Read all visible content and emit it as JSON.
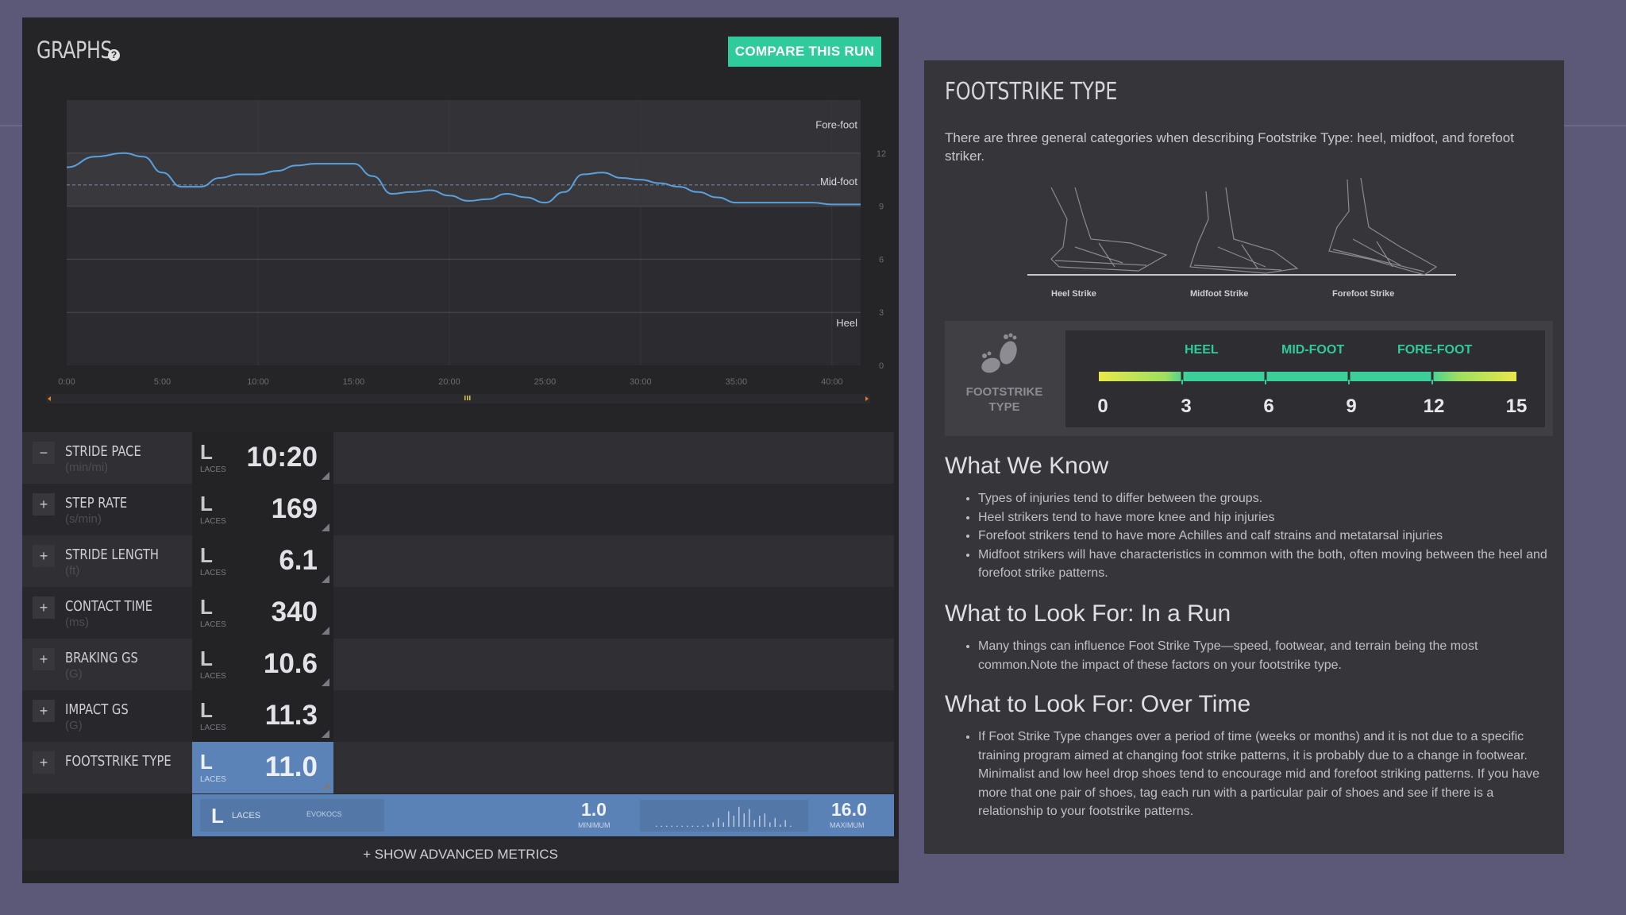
{
  "left": {
    "title": "GRAPHS",
    "help": "?",
    "compare_button": "COMPARE THIS RUN",
    "chart_labels": {
      "fore": "Fore-foot",
      "mid": "Mid-foot",
      "heel": "Heel"
    },
    "show_advanced": "+ SHOW ADVANCED METRICS",
    "metrics": [
      {
        "toggle": "−",
        "name": "STRIDE PACE",
        "unit": "(min/mi)",
        "letter": "L",
        "shoe": "LACES",
        "value": "10:20"
      },
      {
        "toggle": "+",
        "name": "STEP RATE",
        "unit": "(s/min)",
        "letter": "L",
        "shoe": "LACES",
        "value": "169"
      },
      {
        "toggle": "+",
        "name": "STRIDE LENGTH",
        "unit": "(ft)",
        "letter": "L",
        "shoe": "LACES",
        "value": "6.1"
      },
      {
        "toggle": "+",
        "name": "CONTACT TIME",
        "unit": "(ms)",
        "letter": "L",
        "shoe": "LACES",
        "value": "340"
      },
      {
        "toggle": "+",
        "name": "BRAKING GS",
        "unit": "(G)",
        "letter": "L",
        "shoe": "LACES",
        "value": "10.6"
      },
      {
        "toggle": "+",
        "name": "IMPACT GS",
        "unit": "(G)",
        "letter": "L",
        "shoe": "LACES",
        "value": "11.3"
      },
      {
        "toggle": "+",
        "name": "FOOTSTRIKE TYPE",
        "unit": "",
        "letter": "L",
        "shoe": "LACES",
        "value": "11.0"
      }
    ],
    "compare_bar": {
      "letter": "L",
      "shoe": "LACES",
      "shoe_model": "EVOKOCS",
      "min_value": "1.0",
      "min_label": "MINIMUM",
      "max_value": "16.0",
      "max_label": "MAXIMUM"
    }
  },
  "right": {
    "title": "FOOTSTRIKE TYPE",
    "intro": "There are three general categories when describing Footstrike Type: heel, midfoot, and forefoot striker.",
    "foot_labels": [
      "Heel Strike",
      "Midfoot Strike",
      "Forefoot Strike"
    ],
    "scale": {
      "side_label_1": "FOOTSTRIKE",
      "side_label_2": "TYPE",
      "zones": [
        "HEEL",
        "MID-FOOT",
        "FORE-FOOT"
      ],
      "ticks": [
        "0",
        "3",
        "6",
        "9",
        "12",
        "15"
      ]
    },
    "sections": [
      {
        "heading": "What We Know",
        "bullets": [
          "Types of injuries tend to differ between the groups.",
          "Heel strikers tend to have more knee and hip injuries",
          "Forefoot strikers tend to have more Achilles and calf strains and metatarsal injuries",
          "Midfoot strikers will have characteristics in common with the both, often moving between the heel and forefoot strike patterns."
        ]
      },
      {
        "heading": "What to Look For: In a Run",
        "bullets": [
          "Many things can influence Foot Strike Type—speed, footwear, and terrain being the most common.Note the impact of these factors on your footstrike type."
        ]
      },
      {
        "heading": "What to Look For: Over Time",
        "bullets": [
          "If Foot Strike Type changes over a period of time (weeks or months) and it is not due to a specific training program aimed at changing foot strike patterns, it is probably due to a change in footwear. Minimalist and low heel drop shoes tend to encourage mid and forefoot striking patterns. If you have more that one pair of shoes, tag each run with a particular pair of shoes and see if there is a relationship to your footstrike patterns."
        ]
      }
    ]
  },
  "chart_data": {
    "type": "line",
    "x_ticks": [
      "0:00",
      "5:00",
      "10:00",
      "15:00",
      "20:00",
      "25:00",
      "30:00",
      "35:00",
      "40:00"
    ],
    "y_ticks": [
      "0",
      "3",
      "6",
      "9",
      "12"
    ],
    "ylim": [
      0,
      15
    ],
    "xlim_minutes": [
      0,
      41.5
    ],
    "average": 10.2,
    "series": [
      {
        "x": [
          0,
          1.5,
          3,
          4,
          5,
          6,
          7,
          8,
          9,
          10,
          11,
          12,
          13,
          14,
          15,
          16,
          17,
          18,
          19,
          20,
          21,
          22,
          23,
          24,
          25,
          26,
          27,
          28,
          29,
          30,
          31,
          32,
          33,
          34,
          35,
          36,
          37,
          38,
          39,
          40,
          41.5
        ],
        "y": [
          11.2,
          11.8,
          12.0,
          11.8,
          10.9,
          10.1,
          10.1,
          10.6,
          10.8,
          10.8,
          11.0,
          11.3,
          11.4,
          11.4,
          11.4,
          10.7,
          9.7,
          9.8,
          9.9,
          9.6,
          9.3,
          9.4,
          9.7,
          9.5,
          9.2,
          9.8,
          10.8,
          10.9,
          10.6,
          10.5,
          10.3,
          10.1,
          9.8,
          9.5,
          9.2,
          9.2,
          9.2,
          9.2,
          9.2,
          9.1,
          9.1
        ]
      }
    ]
  },
  "colors": {
    "accent": "#2fcb9c",
    "series": "#5aa0dc",
    "active": "#5b83b8"
  }
}
